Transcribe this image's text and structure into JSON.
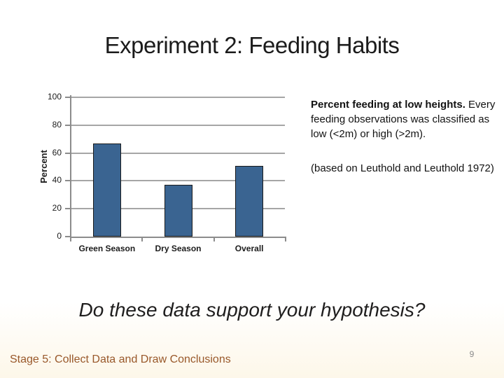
{
  "slide": {
    "title": "Experiment 2: Feeding Habits",
    "question": "Do these data support your hypothesis?",
    "footer": "Stage 5: Collect Data and Draw Conclusions",
    "page_number": "9"
  },
  "description": {
    "bold_lead": "Percent feeding at low heights.",
    "body": "Every feeding observations was classified as low (<2m) or high (>2m).",
    "citation": "(based on Leuthold and Leuthold 1972)"
  },
  "chart_data": {
    "type": "bar",
    "categories": [
      "Green Season",
      "Dry Season",
      "Overall"
    ],
    "values": [
      67,
      37,
      51
    ],
    "title": "",
    "xlabel": "",
    "ylabel": "Percent",
    "ylim": [
      0,
      100
    ],
    "yticks": [
      0,
      20,
      40,
      60,
      80,
      100
    ],
    "grid": true,
    "legend": "none",
    "bar_color": "#3A6491",
    "bar_border": "#1A1A1A",
    "axis_color": "#8C8C8C",
    "gridline_color": "#A6A6A6"
  },
  "colors": {
    "background": "#FFFFFF",
    "title_text": "#1B1B1B",
    "question_text": "#1F1E1E",
    "footer_text": "#99582A",
    "page_number_text": "#8A8A8A"
  }
}
